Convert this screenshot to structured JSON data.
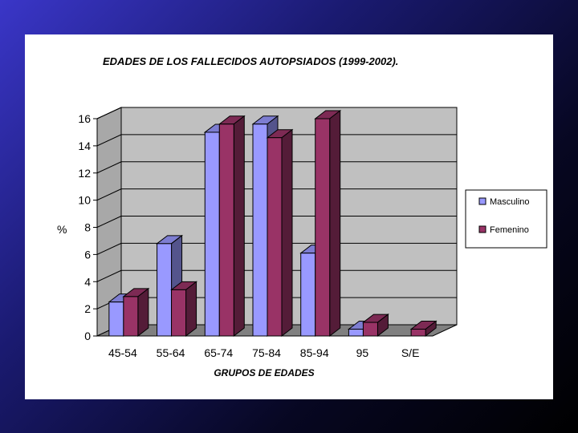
{
  "chart_data": {
    "type": "bar",
    "title": "EDADES DE LOS FALLECIDOS AUTOPSIADOS (1999-2002).",
    "xlabel": "GRUPOS DE EDADES",
    "ylabel": "%",
    "categories": [
      "45-54",
      "55-64",
      "65-74",
      "75-84",
      "85-94",
      "95",
      "S/E"
    ],
    "series": [
      {
        "name": "Masculino",
        "values": [
          2.5,
          6.8,
          15.0,
          15.6,
          6.1,
          0.5,
          0
        ],
        "color": "#9999ff"
      },
      {
        "name": "Femenino",
        "values": [
          2.9,
          3.4,
          15.6,
          14.6,
          16.0,
          1.0,
          0.5
        ],
        "color": "#993366"
      }
    ],
    "ylim": [
      0,
      16
    ],
    "yticks": [
      0,
      2,
      4,
      6,
      8,
      10,
      12,
      14,
      16
    ],
    "grid": true,
    "legend_position": "right",
    "wall_color": "#c0c0c0"
  }
}
